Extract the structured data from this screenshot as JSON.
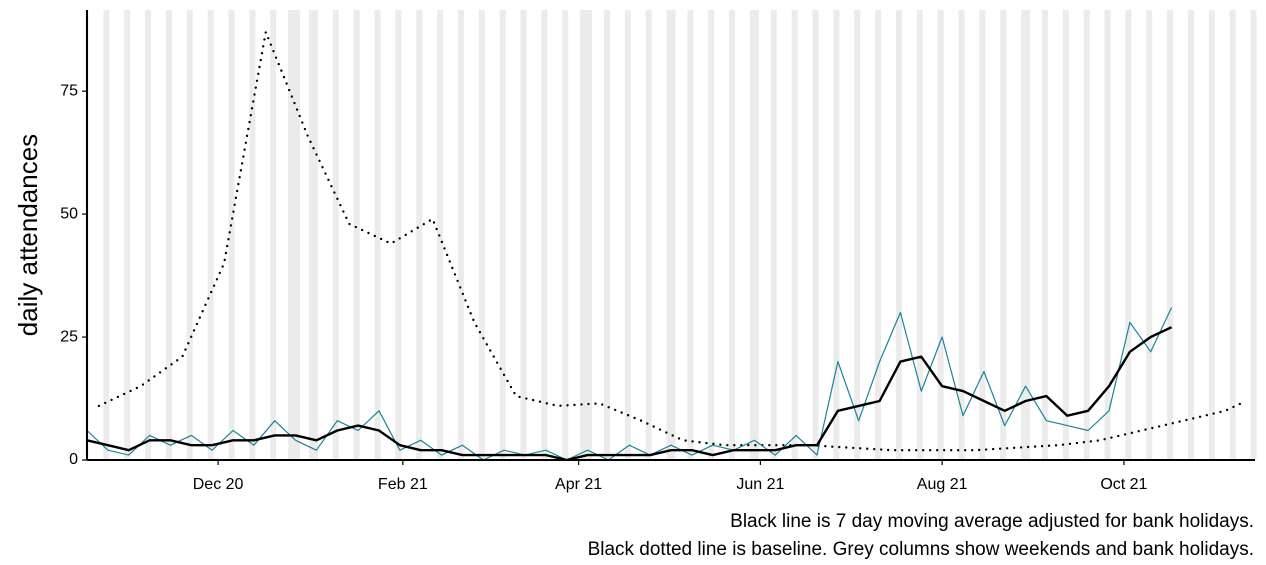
{
  "chart_data": {
    "type": "line",
    "ylabel": "daily attendances",
    "notes": [
      "Black line is 7 day moving average adjusted for bank holidays.",
      "Black dotted line is baseline. Grey columns show weekends and bank holidays."
    ],
    "xlim": [
      "2020-10-18",
      "2021-11-14"
    ],
    "xticks": [
      {
        "value": "2020-12-01",
        "label": "Dec 20"
      },
      {
        "value": "2021-02-01",
        "label": "Feb 21"
      },
      {
        "value": "2021-04-01",
        "label": "Apr 21"
      },
      {
        "value": "2021-06-01",
        "label": "Jun 21"
      },
      {
        "value": "2021-08-01",
        "label": "Aug 21"
      },
      {
        "value": "2021-10-01",
        "label": "Oct 21"
      }
    ],
    "ylim": [
      0,
      91.5
    ],
    "yticks": [
      0,
      25,
      50,
      75
    ],
    "shading": {
      "color": "#ebebeb",
      "weekends": true,
      "bank_holidays": [
        "2020-12-25",
        "2020-12-28",
        "2021-01-01",
        "2021-04-02",
        "2021-04-05",
        "2021-05-03",
        "2021-05-31",
        "2021-08-30"
      ]
    },
    "x": [
      "2020-10-18",
      "2020-10-25",
      "2020-11-01",
      "2020-11-08",
      "2020-11-15",
      "2020-11-22",
      "2020-11-29",
      "2020-12-06",
      "2020-12-13",
      "2020-12-20",
      "2020-12-27",
      "2021-01-03",
      "2021-01-10",
      "2021-01-17",
      "2021-01-24",
      "2021-01-31",
      "2021-02-07",
      "2021-02-14",
      "2021-02-21",
      "2021-02-28",
      "2021-03-07",
      "2021-03-14",
      "2021-03-21",
      "2021-03-28",
      "2021-04-04",
      "2021-04-11",
      "2021-04-18",
      "2021-04-25",
      "2021-05-02",
      "2021-05-09",
      "2021-05-16",
      "2021-05-23",
      "2021-05-30",
      "2021-06-06",
      "2021-06-13",
      "2021-06-20",
      "2021-06-27",
      "2021-07-04",
      "2021-07-11",
      "2021-07-18",
      "2021-07-25",
      "2021-08-01",
      "2021-08-08",
      "2021-08-15",
      "2021-08-22",
      "2021-08-29",
      "2021-09-05",
      "2021-09-12",
      "2021-09-19",
      "2021-09-26",
      "2021-10-03",
      "2021-10-10",
      "2021-10-17"
    ],
    "series": [
      {
        "color": "#1a8499",
        "width": 1.2,
        "values": [
          6,
          2,
          1,
          5,
          3,
          5,
          2,
          6,
          3,
          8,
          4,
          2,
          8,
          6,
          10,
          2,
          4,
          1,
          3,
          0,
          2,
          1,
          2,
          0,
          2,
          0,
          3,
          1,
          3,
          1,
          3,
          2,
          4,
          1,
          5,
          1,
          20,
          8,
          20,
          30,
          14,
          25,
          9,
          18,
          7,
          15,
          8,
          7,
          6,
          10,
          28,
          22,
          31
        ]
      },
      {
        "color": "#000000",
        "width": 2.4,
        "values": [
          4,
          3,
          2,
          4,
          4,
          3,
          3,
          4,
          4,
          5,
          5,
          4,
          6,
          7,
          6,
          3,
          2,
          2,
          1,
          1,
          1,
          1,
          1,
          0,
          1,
          1,
          1,
          1,
          2,
          2,
          1,
          2,
          2,
          2,
          3,
          3,
          10,
          11,
          12,
          20,
          21,
          15,
          14,
          12,
          10,
          12,
          13,
          9,
          10,
          15,
          22,
          25,
          27
        ]
      }
    ],
    "baseline": {
      "color": "#000000",
      "style": "dotted",
      "x": [
        "2020-10-22",
        "2020-11-05",
        "2020-11-19",
        "2020-12-03",
        "2020-12-17",
        "2020-12-31",
        "2021-01-14",
        "2021-01-28",
        "2021-02-11",
        "2021-02-25",
        "2021-03-11",
        "2021-03-25",
        "2021-04-08",
        "2021-04-22",
        "2021-05-06",
        "2021-05-20",
        "2021-06-03",
        "2021-06-17",
        "2021-07-01",
        "2021-07-15",
        "2021-07-29",
        "2021-08-12",
        "2021-08-26",
        "2021-09-09",
        "2021-09-23",
        "2021-10-07",
        "2021-10-21",
        "2021-11-04",
        "2021-11-11"
      ],
      "values": [
        11,
        15,
        21,
        40,
        87,
        66,
        48,
        44,
        49,
        28,
        13,
        11,
        11.5,
        8,
        4,
        3,
        3,
        3,
        2.5,
        2,
        2,
        2,
        2.5,
        3,
        4,
        6,
        8,
        10,
        12
      ]
    }
  }
}
